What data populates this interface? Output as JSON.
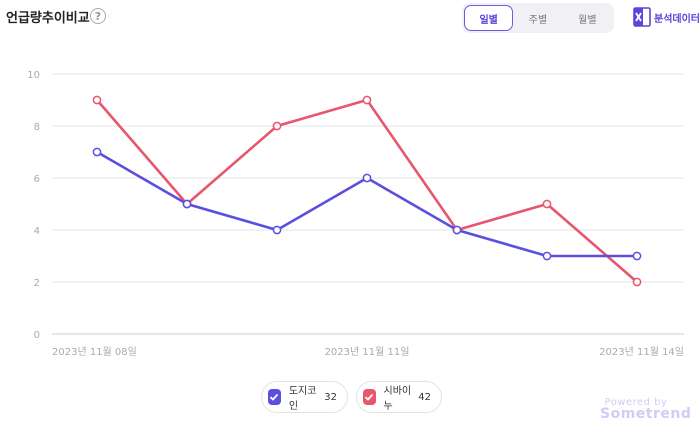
{
  "header": {
    "title": "언급량추이비교",
    "help": "?"
  },
  "period_tabs": [
    "일별",
    "주별",
    "월별"
  ],
  "active_period": 0,
  "export": {
    "label": "분석데이터",
    "icon": "excel-icon"
  },
  "legend": [
    {
      "name": "도지코인",
      "count": "32",
      "color": "#5b4fdf"
    },
    {
      "name": "시바이누",
      "count": "42",
      "color": "#e7566c"
    }
  ],
  "credit": {
    "powered": "Powered by",
    "brand": "Sometrend"
  },
  "chart_data": {
    "type": "line",
    "x": [
      "2023년 11월 08일",
      "",
      "",
      "2023년 11월 11일",
      "",
      "",
      "2023년 11월 14일"
    ],
    "x_tick_labels": [
      "2023년 11월 08일",
      "2023년 11월 11일",
      "2023년 11월 14일"
    ],
    "series": [
      {
        "name": "도지코인",
        "color": "#5b4fdf",
        "values": [
          7,
          5,
          4,
          6,
          4,
          3,
          3
        ]
      },
      {
        "name": "시바이누",
        "color": "#e7566c",
        "values": [
          9,
          5,
          8,
          9,
          4,
          5,
          2
        ]
      }
    ],
    "ylim": [
      0,
      10
    ],
    "yticks": [
      0,
      2,
      4,
      6,
      8,
      10
    ],
    "grid": true
  }
}
